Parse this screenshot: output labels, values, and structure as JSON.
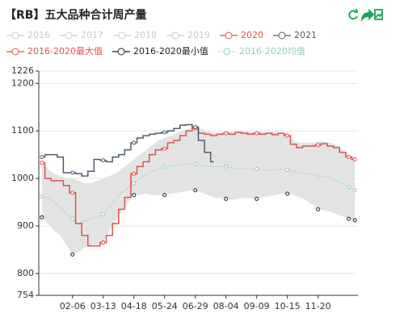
{
  "chart_data": {
    "type": "line",
    "title": "【RB】五大品种合计周产量",
    "categories": [
      null,
      null,
      null,
      null,
      null,
      "02-06",
      null,
      null,
      null,
      null,
      "03-13",
      null,
      null,
      null,
      null,
      "04-18",
      null,
      null,
      null,
      null,
      "05-24",
      null,
      null,
      null,
      null,
      "06-29",
      null,
      null,
      null,
      null,
      "08-04",
      null,
      null,
      null,
      null,
      "09-09",
      null,
      null,
      null,
      null,
      "10-15",
      null,
      null,
      null,
      null,
      "11-20",
      null,
      null,
      null,
      null,
      null,
      null
    ],
    "ylim": [
      754,
      1226
    ],
    "yticks": [
      754,
      800,
      900,
      1000,
      1100,
      1200,
      1226
    ],
    "grid": true,
    "series": [
      {
        "name": "2016",
        "visible": false
      },
      {
        "name": "2017",
        "visible": false
      },
      {
        "name": "2018",
        "visible": false
      },
      {
        "name": "2019",
        "visible": false
      },
      {
        "name": "2020",
        "color": "#e0524b",
        "style": "step",
        "values": [
          1033,
          1000,
          995,
          995,
          985,
          970,
          905,
          880,
          858,
          858,
          865,
          880,
          905,
          935,
          960,
          1010,
          1025,
          1035,
          1050,
          1060,
          1063,
          1075,
          1080,
          1090,
          1100,
          1105,
          1095,
          1093,
          1090,
          1093,
          1095,
          1093,
          1097,
          1095,
          1093,
          1095,
          1093,
          1095,
          1092,
          1095,
          1090,
          1072,
          1065,
          1068,
          1068,
          1070,
          1073,
          1068,
          1065,
          1055,
          1045,
          1040
        ]
      },
      {
        "name": "2021",
        "color": "#4d5d6e",
        "style": "step",
        "values": [
          1045,
          1050,
          1050,
          1045,
          1012,
          1012,
          1010,
          1005,
          1015,
          1040,
          1038,
          1035,
          1045,
          1050,
          1060,
          1075,
          1085,
          1090,
          1093,
          1095,
          1097,
          1100,
          1105,
          1112,
          1113,
          1108,
          1080,
          1055,
          1035,
          null,
          null,
          null,
          null,
          null,
          null,
          null,
          null,
          null,
          null,
          null,
          null,
          null,
          null,
          null,
          null,
          null,
          null,
          null,
          null,
          null,
          null,
          null
        ]
      },
      {
        "name": "2016-2020最大值",
        "color": "#e0524b",
        "style": "band-top",
        "values": [
          1035,
          1020,
          1010,
          1005,
          1000,
          1000,
          995,
          990,
          990,
          995,
          1000,
          1005,
          1010,
          1020,
          1030,
          1040,
          1050,
          1060,
          1070,
          1080,
          1085,
          1090,
          1095,
          1100,
          1105,
          1110,
          1105,
          1100,
          1095,
          1095,
          1097,
          1098,
          1098,
          1100,
          1098,
          1097,
          1098,
          1097,
          1098,
          1095,
          1095,
          1080,
          1075,
          1075,
          1075,
          1078,
          1078,
          1075,
          1070,
          1060,
          1050,
          1045
        ]
      },
      {
        "name": "2016-2020最小值",
        "color": "#222222",
        "style": "band-bottom",
        "values": [
          918,
          905,
          890,
          880,
          860,
          840,
          845,
          855,
          860,
          862,
          865,
          890,
          910,
          930,
          950,
          965,
          965,
          968,
          965,
          965,
          965,
          968,
          970,
          972,
          975,
          975,
          970,
          965,
          960,
          958,
          957,
          955,
          957,
          960,
          958,
          957,
          960,
          963,
          965,
          967,
          968,
          965,
          960,
          955,
          945,
          935,
          933,
          930,
          925,
          920,
          915,
          912
        ]
      },
      {
        "name": "2016-2020均值",
        "color": "#8fcfb6",
        "style": "dotted",
        "values": [
          962,
          960,
          950,
          940,
          925,
          915,
          905,
          910,
          915,
          920,
          925,
          940,
          955,
          970,
          980,
          990,
          1000,
          1010,
          1015,
          1020,
          1025,
          1025,
          1028,
          1030,
          1030,
          1030,
          1028,
          1025,
          1025,
          1025,
          1025,
          1022,
          1020,
          1020,
          1020,
          1020,
          1018,
          1018,
          1018,
          1020,
          1018,
          1015,
          1012,
          1010,
          1008,
          1005,
          1005,
          1000,
          995,
          990,
          982,
          975
        ]
      }
    ]
  }
}
